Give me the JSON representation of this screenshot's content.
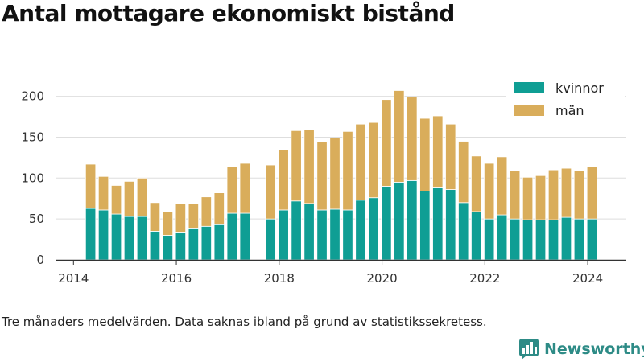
{
  "title": "Antal mottagare ekonomiskt bistånd",
  "caption": "Tre månaders medelvärden. Data saknas ibland på grund av statistikssekretess.",
  "brand": {
    "name": "Newsworthy",
    "color": "#2d8b86"
  },
  "chart_data": {
    "type": "bar",
    "stacked": true,
    "x": [
      "2014-05",
      "2014-08",
      "2014-11",
      "2015-02",
      "2015-05",
      "2015-08",
      "2015-11",
      "2016-02",
      "2016-05",
      "2016-08",
      "2016-11",
      "2017-02",
      "2017-05",
      "2017-11",
      "2018-02",
      "2018-05",
      "2018-08",
      "2018-11",
      "2019-02",
      "2019-05",
      "2019-08",
      "2019-11",
      "2020-02",
      "2020-05",
      "2020-08",
      "2020-11",
      "2021-02",
      "2021-05",
      "2021-08",
      "2021-11",
      "2022-02",
      "2022-05",
      "2022-08",
      "2022-11",
      "2023-02",
      "2023-05",
      "2023-08",
      "2023-11",
      "2024-02"
    ],
    "series": [
      {
        "name": "kvinnor",
        "color": "#0f9e94",
        "values": [
          63,
          61,
          56,
          53,
          53,
          35,
          30,
          33,
          38,
          41,
          43,
          57,
          57,
          50,
          61,
          72,
          69,
          61,
          62,
          61,
          73,
          76,
          90,
          95,
          97,
          84,
          88,
          86,
          70,
          59,
          50,
          55,
          50,
          49,
          49,
          49,
          52,
          50,
          50
        ]
      },
      {
        "name": "män",
        "color": "#d9ad5b",
        "values": [
          54,
          41,
          35,
          43,
          47,
          35,
          29,
          36,
          31,
          36,
          39,
          57,
          61,
          66,
          74,
          86,
          90,
          83,
          87,
          96,
          93,
          92,
          106,
          112,
          102,
          89,
          88,
          80,
          75,
          68,
          68,
          71,
          59,
          52,
          54,
          61,
          60,
          59,
          64
        ]
      }
    ],
    "xticks": [
      "2014",
      "2016",
      "2018",
      "2020",
      "2022",
      "2024"
    ],
    "yticks": [
      "0",
      "50",
      "100",
      "150",
      "200"
    ],
    "ylim": [
      0,
      220
    ],
    "xlim": [
      "2013-09",
      "2024-10"
    ],
    "legend": {
      "position": "top-right",
      "entries": [
        "kvinnor",
        "män"
      ]
    },
    "grid": "y"
  }
}
